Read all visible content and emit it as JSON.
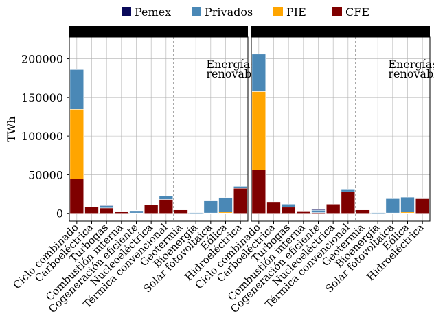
{
  "chart_data": {
    "type": "bar",
    "stacked": true,
    "ylabel": "TWh",
    "ylim": [
      -10000,
      228000
    ],
    "yticks": [
      0,
      50000,
      100000,
      150000,
      200000
    ],
    "grid": true,
    "legend_position": "top",
    "categories": [
      "Ciclo combinado",
      "Carboeléctrica",
      "Turbogas",
      "Combustión interna",
      "Cogeneración eficiente",
      "Nucleoeléctrica",
      "Térmica convencional",
      "Geotermia",
      "Bioenergía",
      "Solar fotovoltaica",
      "Eólica",
      "Hidroeléctrica"
    ],
    "renewables_start_index": 7,
    "annotation": [
      "Energías",
      "renovables"
    ],
    "series_order": [
      "Pemex",
      "Privados",
      "PIE",
      "CFE"
    ],
    "colors": {
      "Pemex": "#0a0a5a",
      "Privados": "#4a88b6",
      "PIE": "#ffa500",
      "CFE": "#7f0000"
    },
    "panels": [
      {
        "series": [
          {
            "name": "CFE",
            "values": [
              44500,
              8500,
              7000,
              2500,
              500,
              11000,
              18000,
              4500,
              0,
              500,
              500,
              32500
            ]
          },
          {
            "name": "PIE",
            "values": [
              90000,
              0,
              0,
              0,
              0,
              0,
              0,
              0,
              0,
              0,
              1500,
              0
            ]
          },
          {
            "name": "Privados",
            "values": [
              51500,
              0,
              3000,
              0,
              3000,
              0,
              4500,
              0,
              1000,
              16500,
              18500,
              2500
            ]
          },
          {
            "name": "Pemex",
            "values": [
              0,
              0,
              1000,
              0,
              500,
              0,
              0,
              0,
              0,
              0,
              0,
              0
            ]
          }
        ]
      },
      {
        "series": [
          {
            "name": "CFE",
            "values": [
              56000,
              15000,
              8000,
              3000,
              1000,
              12000,
              28000,
              4500,
              0,
              500,
              500,
              19000
            ]
          },
          {
            "name": "PIE",
            "values": [
              101500,
              0,
              0,
              0,
              0,
              0,
              0,
              0,
              0,
              0,
              1500,
              0
            ]
          },
          {
            "name": "Privados",
            "values": [
              48500,
              0,
              4000,
              0,
              3000,
              0,
              3500,
              0,
              1000,
              18500,
              19000,
              1500
            ]
          },
          {
            "name": "Pemex",
            "values": [
              0,
              0,
              0,
              0,
              1000,
              0,
              0,
              0,
              0,
              0,
              0,
              0
            ]
          }
        ]
      }
    ]
  }
}
